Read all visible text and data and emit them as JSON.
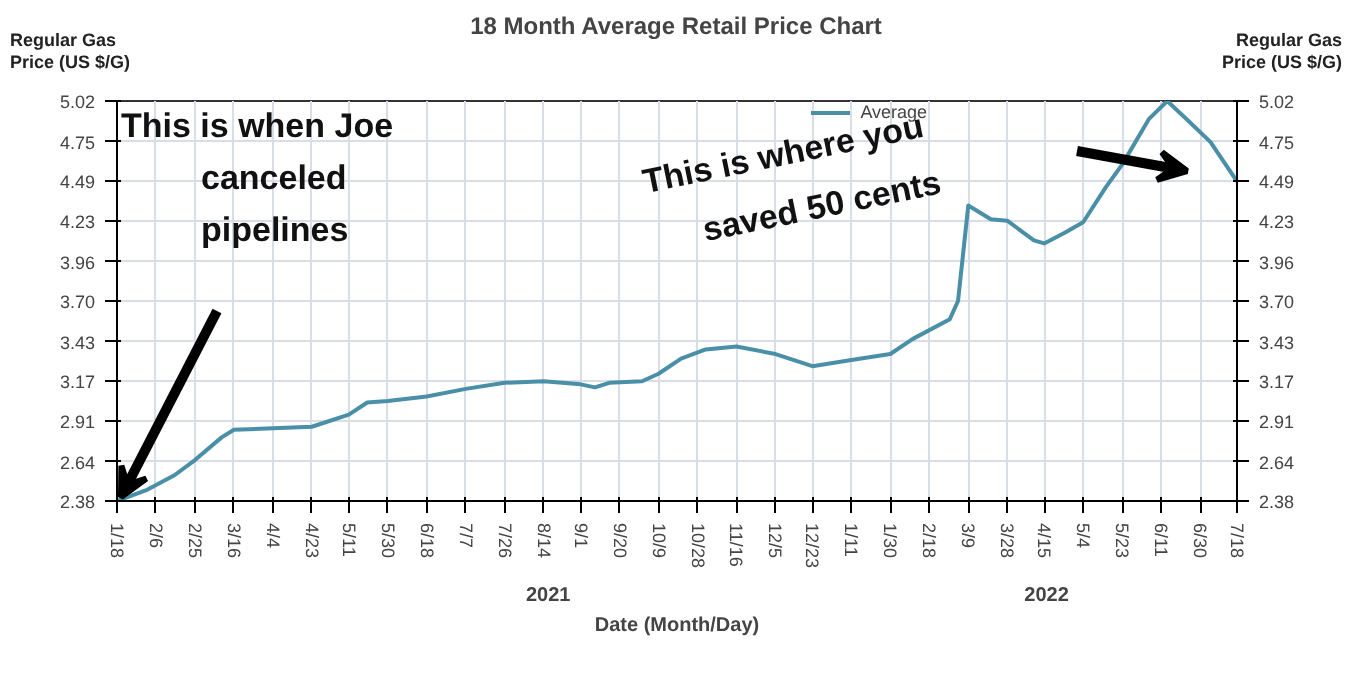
{
  "chart_data": {
    "type": "line",
    "title": "18 Month Average Retail Price Chart",
    "xlabel": "Date (Month/Day)",
    "ylabel": "Regular Gas Price (US $/G)",
    "y2label": "Regular Gas Price (US $/G)",
    "x": [
      "2021-01-18",
      "2021-02-01",
      "2021-02-15",
      "2021-02-25",
      "2021-03-10",
      "2021-03-16",
      "2021-04-04",
      "2021-04-23",
      "2021-05-11",
      "2021-05-20",
      "2021-05-30",
      "2021-06-18",
      "2021-07-07",
      "2021-07-26",
      "2021-08-14",
      "2021-09-01",
      "2021-09-08",
      "2021-09-15",
      "2021-10-01",
      "2021-10-09",
      "2021-10-20",
      "2021-11-01",
      "2021-11-16",
      "2021-12-05",
      "2021-12-23",
      "2022-01-11",
      "2022-01-30",
      "2022-02-10",
      "2022-02-28",
      "2022-03-04",
      "2022-03-09",
      "2022-03-20",
      "2022-03-28",
      "2022-04-10",
      "2022-04-15",
      "2022-04-25",
      "2022-05-04",
      "2022-05-15",
      "2022-05-23",
      "2022-06-05",
      "2022-06-14",
      "2022-06-25",
      "2022-07-05",
      "2022-07-18"
    ],
    "series": [
      {
        "name": "Average",
        "color": "#4a8fa8",
        "values": [
          2.38,
          2.45,
          2.55,
          2.65,
          2.8,
          2.85,
          2.86,
          2.87,
          2.95,
          3.03,
          3.04,
          3.07,
          3.12,
          3.16,
          3.17,
          3.15,
          3.13,
          3.16,
          3.17,
          3.22,
          3.32,
          3.38,
          3.4,
          3.35,
          3.27,
          3.31,
          3.35,
          3.45,
          3.58,
          3.7,
          4.33,
          4.24,
          4.23,
          4.1,
          4.08,
          4.15,
          4.22,
          4.45,
          4.6,
          4.9,
          5.02,
          4.88,
          4.75,
          4.49
        ]
      }
    ],
    "xlim": [
      "2021-01-18",
      "2022-07-18"
    ],
    "xticks": [
      {
        "value": "2021-01-18",
        "label": "1/18"
      },
      {
        "value": "2021-02-06",
        "label": "2/6"
      },
      {
        "value": "2021-02-25",
        "label": "2/25"
      },
      {
        "value": "2021-03-16",
        "label": "3/16"
      },
      {
        "value": "2021-04-04",
        "label": "4/4"
      },
      {
        "value": "2021-04-23",
        "label": "4/23"
      },
      {
        "value": "2021-05-11",
        "label": "5/11"
      },
      {
        "value": "2021-05-30",
        "label": "5/30"
      },
      {
        "value": "2021-06-18",
        "label": "6/18"
      },
      {
        "value": "2021-07-07",
        "label": "7/7"
      },
      {
        "value": "2021-07-26",
        "label": "7/26"
      },
      {
        "value": "2021-08-14",
        "label": "8/14"
      },
      {
        "value": "2021-09-01",
        "label": "9/1"
      },
      {
        "value": "2021-09-20",
        "label": "9/20"
      },
      {
        "value": "2021-10-09",
        "label": "10/9"
      },
      {
        "value": "2021-10-28",
        "label": "10/28"
      },
      {
        "value": "2021-11-16",
        "label": "11/16"
      },
      {
        "value": "2021-12-05",
        "label": "12/5"
      },
      {
        "value": "2021-12-23",
        "label": "12/23"
      },
      {
        "value": "2022-01-11",
        "label": "1/11"
      },
      {
        "value": "2022-01-30",
        "label": "1/30"
      },
      {
        "value": "2022-02-18",
        "label": "2/18"
      },
      {
        "value": "2022-03-09",
        "label": "3/9"
      },
      {
        "value": "2022-03-28",
        "label": "3/28"
      },
      {
        "value": "2022-04-15",
        "label": "4/15"
      },
      {
        "value": "2022-05-04",
        "label": "5/4"
      },
      {
        "value": "2022-05-23",
        "label": "5/23"
      },
      {
        "value": "2022-06-11",
        "label": "6/11"
      },
      {
        "value": "2022-06-30",
        "label": "6/30"
      },
      {
        "value": "2022-07-18",
        "label": "7/18"
      }
    ],
    "ylim": [
      2.38,
      5.02
    ],
    "yticks": [
      2.38,
      2.64,
      2.91,
      3.17,
      3.43,
      {
        "value": 3.7,
        "label": "3.70"
      },
      3.96,
      4.23,
      4.49,
      4.75,
      5.02
    ],
    "y2lim": [
      2.38,
      5.02
    ],
    "y2ticks": [
      2.38,
      2.64,
      2.91,
      3.17,
      3.43,
      {
        "value": 3.7,
        "label": "3.70"
      },
      3.96,
      4.23,
      4.49,
      4.75,
      5.02
    ],
    "annotations": [
      "This is when Joe canceled pipelines",
      "This is where you saved 50 cents",
      "2021",
      "2022"
    ],
    "grid": true,
    "legend": "top",
    "marker": "none",
    "line_style": "solid"
  }
}
